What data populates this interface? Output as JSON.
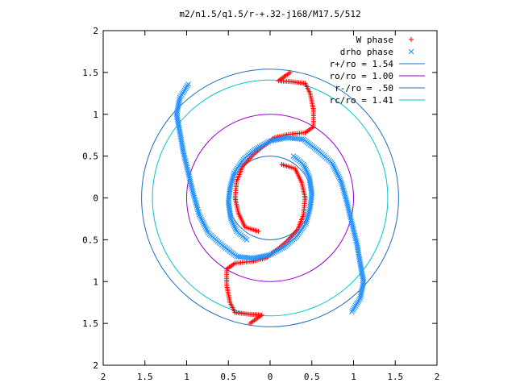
{
  "chart_data": {
    "type": "scatter",
    "title": "m2/n1.5/q1.5/r-+.32-j168/M17.5/512",
    "xlim": [
      -2,
      2
    ],
    "ylim": [
      -2,
      2
    ],
    "x_ticks": [
      -2,
      -1.5,
      -1,
      -0.5,
      0,
      0.5,
      1,
      1.5,
      2
    ],
    "y_ticks": [
      -2,
      -1.5,
      -1,
      -0.5,
      0,
      0.5,
      1,
      1.5,
      2
    ],
    "x_tick_labels": [
      "2",
      "1.5",
      "1",
      "0.5",
      "0",
      "0.5",
      "1",
      "1.5",
      "2"
    ],
    "y_tick_labels": [
      "2",
      "1.5",
      "1",
      "0.5",
      "0",
      "0.5",
      "1",
      "1.5",
      "2"
    ],
    "grid": false,
    "legend_position": "top-right",
    "series": [
      {
        "name": "W phase",
        "marker": "plus",
        "color": "#ff0000",
        "points": [
          [
            0.24,
            1.5
          ],
          [
            0.1,
            1.4
          ],
          [
            0.26,
            1.39
          ],
          [
            0.42,
            1.37
          ],
          [
            0.48,
            1.25
          ],
          [
            0.52,
            1.05
          ],
          [
            0.52,
            0.85
          ],
          [
            0.42,
            0.78
          ],
          [
            0.22,
            0.76
          ],
          [
            0.05,
            0.72
          ],
          [
            -0.08,
            0.62
          ],
          [
            -0.2,
            0.52
          ],
          [
            -0.33,
            0.38
          ],
          [
            -0.4,
            0.2
          ],
          [
            -0.42,
            0.0
          ],
          [
            -0.38,
            -0.18
          ],
          [
            -0.3,
            -0.35
          ],
          [
            -0.14,
            -0.4
          ],
          [
            -0.24,
            -1.5
          ],
          [
            -0.1,
            -1.4
          ],
          [
            -0.26,
            -1.39
          ],
          [
            -0.42,
            -1.37
          ],
          [
            -0.48,
            -1.25
          ],
          [
            -0.52,
            -1.05
          ],
          [
            -0.52,
            -0.85
          ],
          [
            -0.42,
            -0.78
          ],
          [
            -0.22,
            -0.76
          ],
          [
            -0.05,
            -0.72
          ],
          [
            0.08,
            -0.62
          ],
          [
            0.2,
            -0.52
          ],
          [
            0.33,
            -0.38
          ],
          [
            0.4,
            -0.2
          ],
          [
            0.42,
            0.0
          ],
          [
            0.38,
            0.18
          ],
          [
            0.3,
            0.35
          ],
          [
            0.14,
            0.4
          ]
        ]
      },
      {
        "name": "drho phase",
        "marker": "cross",
        "color": "#1e90ff",
        "points": [
          [
            -0.98,
            1.36
          ],
          [
            -1.08,
            1.2
          ],
          [
            -1.12,
            1.0
          ],
          [
            -1.08,
            0.78
          ],
          [
            -1.04,
            0.55
          ],
          [
            -0.98,
            0.3
          ],
          [
            -0.92,
            0.05
          ],
          [
            -0.85,
            -0.2
          ],
          [
            -0.74,
            -0.42
          ],
          [
            -0.58,
            -0.56
          ],
          [
            -0.4,
            -0.7
          ],
          [
            -0.2,
            -0.72
          ],
          [
            0.0,
            -0.68
          ],
          [
            0.18,
            -0.58
          ],
          [
            0.32,
            -0.46
          ],
          [
            0.43,
            -0.3
          ],
          [
            0.48,
            -0.12
          ],
          [
            0.5,
            0.05
          ],
          [
            0.47,
            0.25
          ],
          [
            0.4,
            0.4
          ],
          [
            0.28,
            0.5
          ],
          [
            0.98,
            -1.36
          ],
          [
            1.08,
            -1.2
          ],
          [
            1.12,
            -1.0
          ],
          [
            1.08,
            -0.78
          ],
          [
            1.04,
            -0.55
          ],
          [
            0.98,
            -0.3
          ],
          [
            0.92,
            -0.05
          ],
          [
            0.85,
            0.2
          ],
          [
            0.74,
            0.42
          ],
          [
            0.58,
            0.56
          ],
          [
            0.4,
            0.7
          ],
          [
            0.2,
            0.72
          ],
          [
            0.0,
            0.68
          ],
          [
            -0.18,
            0.58
          ],
          [
            -0.32,
            0.46
          ],
          [
            -0.43,
            0.3
          ],
          [
            -0.48,
            0.12
          ],
          [
            -0.5,
            -0.05
          ],
          [
            -0.47,
            -0.25
          ],
          [
            -0.4,
            -0.4
          ],
          [
            -0.28,
            -0.5
          ]
        ]
      },
      {
        "name": "r+/ro = 1.54",
        "type": "circle",
        "radius": 1.54,
        "color": "#1f6fbf"
      },
      {
        "name": "ro/ro = 1.00",
        "type": "circle",
        "radius": 1.0,
        "color": "#9400d3"
      },
      {
        "name": "r-/ro = .50",
        "type": "circle",
        "radius": 0.5,
        "color": "#1f6fbf"
      },
      {
        "name": "rc/ro = 1.41",
        "type": "circle",
        "radius": 1.41,
        "color": "#00c8c8"
      }
    ]
  }
}
